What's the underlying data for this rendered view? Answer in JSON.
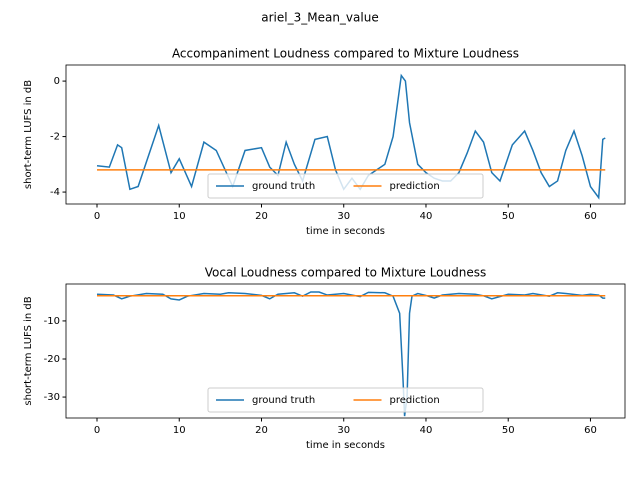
{
  "title": "ariel_3_Mean_value",
  "chart_data": [
    {
      "type": "line",
      "title": "Accompaniment Loudness compared to Mixture Loudness",
      "xlabel": "time in seconds",
      "ylabel": "short-term LUFS in dB",
      "xlim": [
        -3.77,
        64.2
      ],
      "ylim": [
        -4.43,
        0.58
      ],
      "xticks": [
        0,
        10,
        20,
        30,
        40,
        50,
        60
      ],
      "yticks": [
        -4,
        -2,
        0
      ],
      "legend": "lower center",
      "series": [
        {
          "name": "ground truth",
          "color": "#1f77b4",
          "x": [
            0,
            1.5,
            2.5,
            3,
            4,
            5,
            7.5,
            9,
            10,
            11.5,
            13,
            14.5,
            16.5,
            18,
            20,
            21,
            22,
            23,
            24,
            25,
            26.5,
            28,
            29,
            30,
            31,
            32,
            33,
            34,
            35,
            36,
            37,
            37.5,
            38,
            39,
            40,
            41,
            42,
            43,
            44,
            45,
            46,
            47,
            48,
            49,
            50.5,
            52,
            53,
            54,
            55,
            56,
            57,
            58,
            59,
            60,
            61,
            61.5,
            61.8
          ],
          "values": [
            -3.05,
            -3.1,
            -2.3,
            -2.4,
            -3.9,
            -3.8,
            -1.6,
            -3.3,
            -2.8,
            -3.8,
            -2.2,
            -2.5,
            -3.8,
            -2.5,
            -2.4,
            -3.1,
            -3.4,
            -2.2,
            -3.0,
            -3.6,
            -2.1,
            -2.0,
            -3.2,
            -3.9,
            -3.5,
            -3.9,
            -3.4,
            -3.2,
            -3.0,
            -2.0,
            0.2,
            0.0,
            -1.5,
            -3.0,
            -3.3,
            -3.5,
            -3.6,
            -3.6,
            -3.3,
            -2.6,
            -1.8,
            -2.2,
            -3.3,
            -3.6,
            -2.3,
            -1.8,
            -2.5,
            -3.3,
            -3.8,
            -3.6,
            -2.5,
            -1.8,
            -2.7,
            -3.8,
            -4.2,
            -2.1,
            -2.05
          ]
        },
        {
          "name": "prediction",
          "color": "#ff7f0e",
          "x": [
            0,
            61.8
          ],
          "values": [
            -3.2,
            -3.2
          ]
        }
      ]
    },
    {
      "type": "line",
      "title": "Vocal Loudness compared to Mixture Loudness",
      "xlabel": "time in seconds",
      "ylabel": "short-term LUFS in dB",
      "xlim": [
        -3.77,
        64.2
      ],
      "ylim": [
        -35.5,
        -0.3
      ],
      "xticks": [
        0,
        10,
        20,
        30,
        40,
        50,
        60
      ],
      "yticks": [
        -30,
        -20,
        -10
      ],
      "legend": "lower center",
      "series": [
        {
          "name": "ground truth",
          "color": "#1f77b4",
          "x": [
            0,
            2,
            3,
            4,
            6,
            8,
            9,
            10,
            11,
            13,
            15,
            16,
            18,
            20,
            21,
            22,
            24,
            25,
            26,
            27,
            28,
            30,
            32,
            33,
            35,
            36,
            36.8,
            37.2,
            37.4,
            37.7,
            38,
            38.3,
            39,
            40,
            41,
            42,
            44,
            46,
            47,
            48,
            50,
            52,
            53,
            55,
            56,
            57,
            59,
            60,
            61,
            61.5,
            61.8
          ],
          "values": [
            -3.0,
            -3.2,
            -4.2,
            -3.5,
            -2.8,
            -3.0,
            -4.2,
            -4.5,
            -3.5,
            -2.8,
            -3.0,
            -2.6,
            -2.8,
            -3.3,
            -4.2,
            -3.0,
            -2.6,
            -3.5,
            -2.4,
            -2.4,
            -3.2,
            -2.8,
            -3.6,
            -2.5,
            -2.6,
            -3.5,
            -8,
            -25,
            -35,
            -30,
            -8,
            -3.5,
            -2.8,
            -3.3,
            -4.0,
            -3.2,
            -2.8,
            -3.0,
            -3.4,
            -4.2,
            -3.0,
            -3.2,
            -2.8,
            -3.5,
            -2.6,
            -2.8,
            -3.3,
            -3.0,
            -3.2,
            -4.0,
            -4.0
          ]
        },
        {
          "name": "prediction",
          "color": "#ff7f0e",
          "x": [
            0,
            61.8
          ],
          "values": [
            -3.4,
            -3.4
          ]
        }
      ]
    }
  ]
}
